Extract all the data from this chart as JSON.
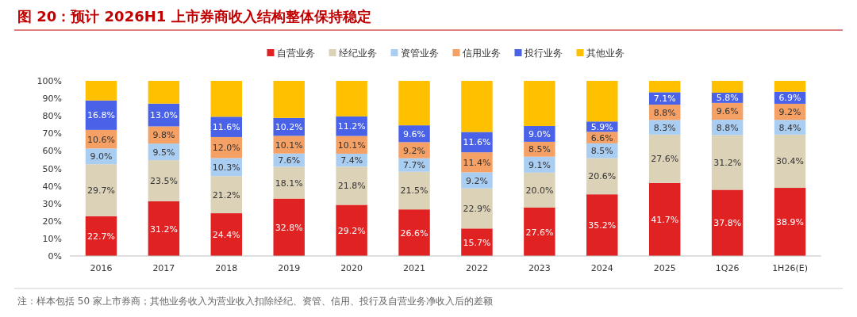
{
  "chart_data": {
    "type": "bar",
    "stacked": true,
    "title": "图 20：预计 2026H1 上市券商收入结构整体保持稳定",
    "annotations": [
      "注：样本包括 50 家上市券商；其他业务收入为营业收入扣除经纪、资管、信用、投行及自营业务净收入后的差额"
    ],
    "categories": [
      "2016",
      "2017",
      "2018",
      "2019",
      "2020",
      "2021",
      "2022",
      "2023",
      "2024",
      "2025",
      "1Q26",
      "1H26(E)"
    ],
    "ylim": [
      0,
      100
    ],
    "yticks": [
      {
        "value": 0,
        "label": "0%"
      },
      {
        "value": 10,
        "label": "10%"
      },
      {
        "value": 20,
        "label": "20%"
      },
      {
        "value": 30,
        "label": "30%"
      },
      {
        "value": 40,
        "label": "40%"
      },
      {
        "value": 50,
        "label": "50%"
      },
      {
        "value": 60,
        "label": "60%"
      },
      {
        "value": 70,
        "label": "70%"
      },
      {
        "value": 80,
        "label": "80%"
      },
      {
        "value": 90,
        "label": "90%"
      },
      {
        "value": 100,
        "label": "100%"
      }
    ],
    "legend": "top",
    "series": [
      {
        "name": "自营业务",
        "color": "#e02222",
        "values": [
          22.7,
          31.2,
          24.4,
          32.8,
          29.2,
          26.6,
          15.7,
          27.6,
          35.2,
          41.7,
          37.8,
          38.9
        ],
        "value_labels": [
          "22.7%",
          "31.2%",
          "24.4%",
          "32.8%",
          "29.2%",
          "26.6%",
          "15.7%",
          "27.6%",
          "35.2%",
          "41.7%",
          "37.8%",
          "38.9%"
        ]
      },
      {
        "name": "经纪业务",
        "color": "#dcd2b8",
        "values": [
          29.7,
          23.5,
          21.2,
          18.1,
          21.8,
          21.5,
          22.9,
          20.0,
          20.6,
          27.6,
          31.2,
          30.4
        ],
        "value_labels": [
          "29.7%",
          "23.5%",
          "21.2%",
          "18.1%",
          "21.8%",
          "21.5%",
          "22.9%",
          "20.0%",
          "20.6%",
          "27.6%",
          "31.2%",
          "30.4%"
        ]
      },
      {
        "name": "资管业务",
        "color": "#aacdf2",
        "values": [
          9.0,
          9.5,
          10.3,
          7.6,
          7.4,
          7.7,
          9.2,
          9.1,
          8.5,
          8.3,
          8.8,
          8.4
        ],
        "value_labels": [
          "9.0%",
          "9.5%",
          "10.3%",
          "7.6%",
          "7.4%",
          "7.7%",
          "9.2%",
          "9.1%",
          "8.5%",
          "8.3%",
          "8.8%",
          "8.4%"
        ]
      },
      {
        "name": "信用业务",
        "color": "#f5a064",
        "values": [
          10.6,
          9.8,
          12.0,
          10.1,
          10.1,
          9.2,
          11.4,
          8.5,
          6.6,
          8.8,
          9.6,
          9.2
        ],
        "value_labels": [
          "10.6%",
          "9.8%",
          "12.0%",
          "10.1%",
          "10.1%",
          "9.2%",
          "11.4%",
          "8.5%",
          "6.6%",
          "8.8%",
          "9.6%",
          "9.2%"
        ]
      },
      {
        "name": "投行业务",
        "color": "#4a62e8",
        "values": [
          16.8,
          13.0,
          11.6,
          10.2,
          11.2,
          9.6,
          11.6,
          9.0,
          5.9,
          7.1,
          5.8,
          6.9
        ],
        "value_labels": [
          "16.8%",
          "13.0%",
          "11.6%",
          "10.2%",
          "11.2%",
          "9.6%",
          "11.6%",
          "9.0%",
          "5.9%",
          "7.1%",
          "5.8%",
          "6.9%"
        ]
      },
      {
        "name": "其他业务",
        "color": "#ffc000",
        "values": [
          11.2,
          13.0,
          20.5,
          21.2,
          20.3,
          25.4,
          29.2,
          25.8,
          23.2,
          6.5,
          6.8,
          6.2
        ],
        "value_labels": [
          null,
          null,
          null,
          null,
          null,
          null,
          null,
          null,
          null,
          null,
          null,
          null
        ]
      }
    ]
  }
}
